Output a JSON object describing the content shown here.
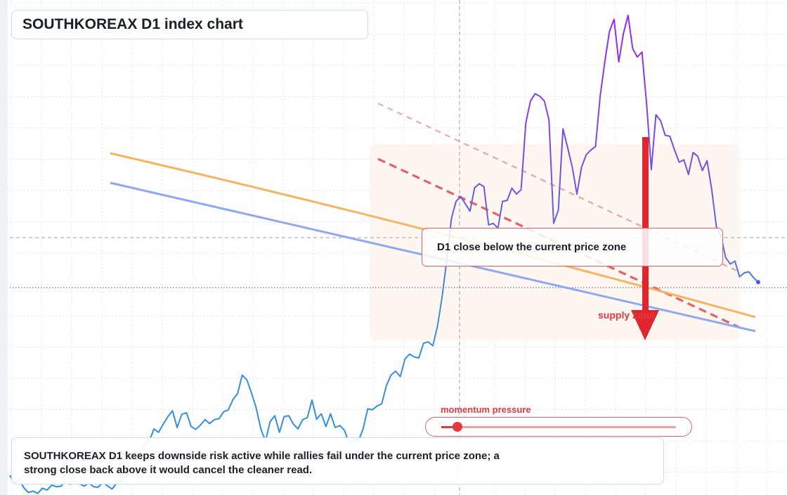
{
  "title": "SOUTHKOREAX D1 index chart",
  "callout": {
    "text": "D1 close below the current price zone"
  },
  "supply_label": "supply zone",
  "momentum": {
    "label": "momentum pressure",
    "level": 0.07
  },
  "summary": "SOUTHKOREAX D1 keeps downside risk active while rallies fail under the current price zone; a strong close back above it would cancel the cleaner read.",
  "colors": {
    "price_start": "#2f8fd8",
    "price_end": "#a020f0",
    "resistance": "#f5b460",
    "support": "#8fa8ee",
    "bear_line": "#e0626a",
    "arrow": "#e0262c",
    "zone": "#fdf4ee"
  },
  "chart_data": {
    "type": "line",
    "y_scale": "inverted screen scale, price read as index units 0-100",
    "ylim": [
      0,
      100
    ],
    "grid": true,
    "series": [
      {
        "values": [
          4,
          2.5,
          3.2,
          1.5,
          0.5,
          0.8,
          0.3,
          1.4,
          1,
          2,
          1.7,
          1.8,
          2.9,
          2.2,
          3,
          2.3,
          1.8,
          2.5,
          1.7,
          1.6,
          2.6,
          1.9,
          1.2,
          2.5,
          3,
          3.8,
          5,
          6.8,
          8.5,
          10.5,
          11,
          13.5,
          12.8,
          14.5,
          16,
          17.2,
          13.8,
          16.5,
          16.8,
          14,
          13.4,
          14.3,
          15.4,
          14.6,
          15.4,
          15.6,
          17,
          17.4,
          19.5,
          20.7,
          24.5,
          23.5,
          20.8,
          17.8,
          13.5,
          11,
          15,
          16.2,
          12.8,
          16,
          16.2,
          14.5,
          13.5,
          15.4,
          15.8,
          19.4,
          15.5,
          16.6,
          14,
          16.6,
          13.8,
          14.2,
          13.2,
          10.5,
          11.5,
          11,
          13.5,
          17.6,
          17.4,
          18.2,
          18.6,
          22.3,
          24.5,
          25.3,
          24.2,
          27.8,
          28.8,
          28.2,
          28,
          31,
          31.3,
          30.5,
          34.5,
          40.5,
          48,
          56.5,
          60,
          61,
          59.5,
          58,
          62.8,
          63.6,
          63,
          55.2,
          55.5,
          54.5,
          60,
          60.2,
          62.7,
          61.5,
          62.4,
          76,
          80.5,
          82,
          81.5,
          80.5,
          76.6,
          55.5,
          58.2,
          74.8,
          71,
          67,
          61.5,
          67,
          69.5,
          70.5,
          71.2,
          81.5,
          88.5,
          94.7,
          97.2,
          88.5,
          94.3,
          98,
          91.2,
          89.5,
          90.5,
          80,
          66.5,
          77.7,
          76.5,
          73.5,
          73.3,
          70.5,
          68,
          68.5,
          65.5,
          70,
          69.2,
          66.3,
          68.3,
          62.4,
          54.8,
          52.9,
          48.5,
          47.2,
          47.8,
          44.6,
          45.4,
          45.6,
          44.4,
          43.5
        ]
      }
    ],
    "annotations": [
      "D1 close below the current price zone",
      "supply zone",
      "momentum pressure"
    ]
  }
}
